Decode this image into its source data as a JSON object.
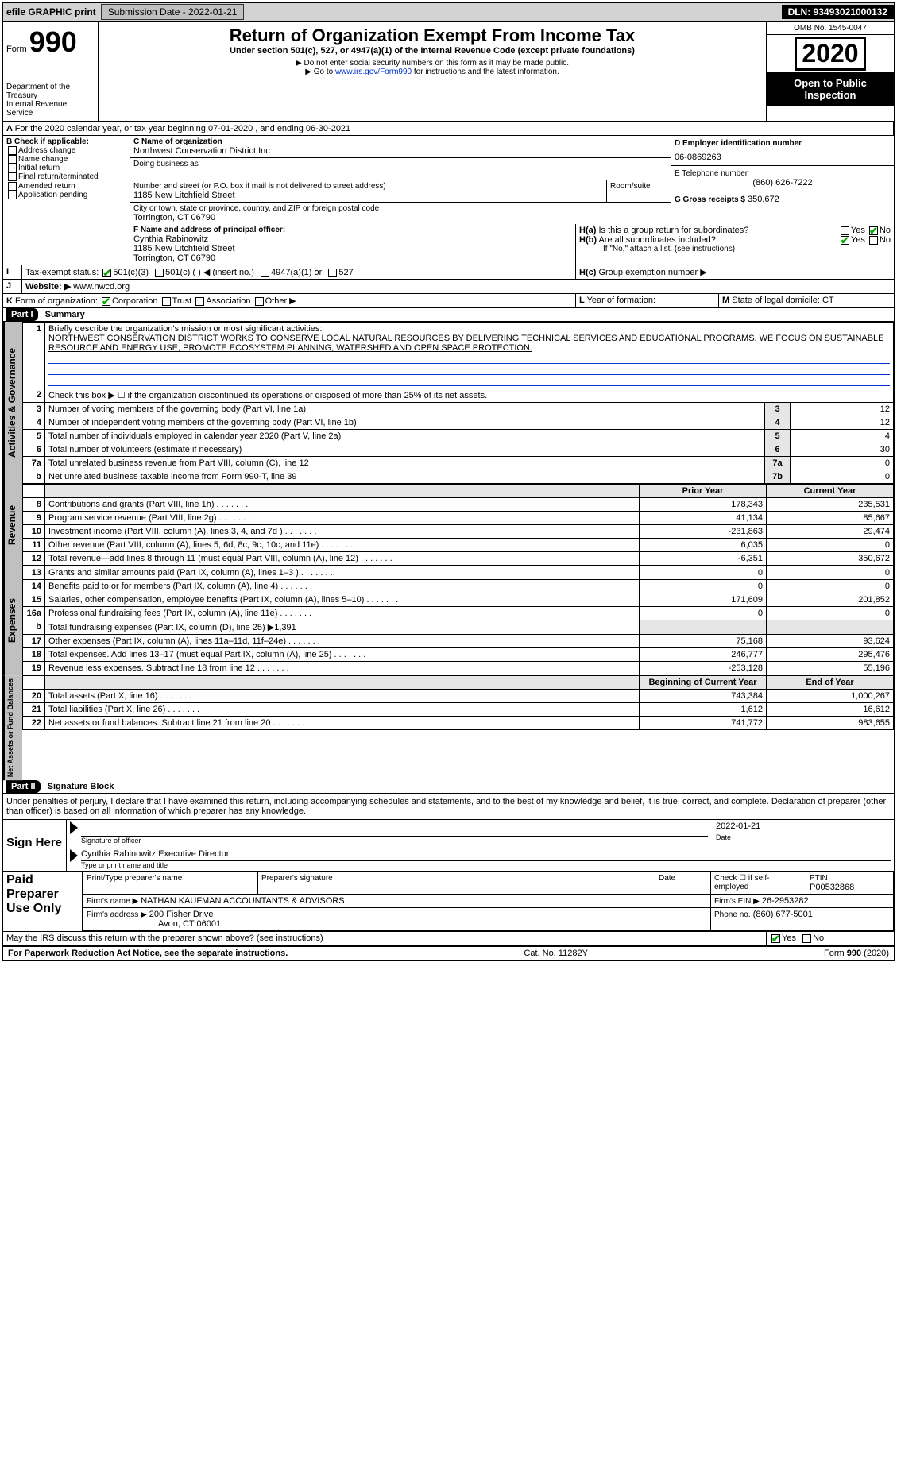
{
  "toolbar": {
    "efile": "efile GRAPHIC print",
    "submission_label": "Submission Date - 2022-01-21",
    "dln_label": "DLN: 93493021000132"
  },
  "header": {
    "form_word": "Form",
    "form_no": "990",
    "dept1": "Department of the Treasury",
    "dept2": "Internal Revenue Service",
    "title": "Return of Organization Exempt From Income Tax",
    "subtitle": "Under section 501(c), 527, or 4947(a)(1) of the Internal Revenue Code (except private foundations)",
    "note1": "▶ Do not enter social security numbers on this form as it may be made public.",
    "note2_pre": "▶ Go to ",
    "note2_link": "www.irs.gov/Form990",
    "note2_post": " for instructions and the latest information.",
    "omb": "OMB No. 1545-0047",
    "year": "2020",
    "open": "Open to Public Inspection"
  },
  "periodA": "For the 2020 calendar year, or tax year beginning 07-01-2020   , and ending 06-30-2021",
  "B": {
    "label": "B Check if applicable:",
    "opts": [
      "Address change",
      "Name change",
      "Initial return",
      "Final return/terminated",
      "Amended return",
      "Application pending"
    ]
  },
  "C": {
    "name_label": "C Name of organization",
    "name": "Northwest Conservation District Inc",
    "dba_label": "Doing business as",
    "addr_label": "Number and street (or P.O. box if mail is not delivered to street address)",
    "room_label": "Room/suite",
    "addr": "1185 New Litchfield Street",
    "city_label": "City or town, state or province, country, and ZIP or foreign postal code",
    "city": "Torrington, CT  06790"
  },
  "D": {
    "label": "D Employer identification number",
    "val": "06-0869263"
  },
  "E": {
    "label": "E Telephone number",
    "val": "(860) 626-7222"
  },
  "G": {
    "label": "G Gross receipts $",
    "val": "350,672"
  },
  "F": {
    "label": "F Name and address of principal officer:",
    "name": "Cynthia Rabinowitz",
    "addr1": "1185 New Litchfield Street",
    "addr2": "Torrington, CT  06790"
  },
  "H": {
    "a": "Is this a group return for subordinates?",
    "b": "Are all subordinates included?",
    "bnote": "If \"No,\" attach a list. (see instructions)",
    "c": "Group exemption number ▶",
    "yes": "Yes",
    "no": "No"
  },
  "I": {
    "label": "Tax-exempt status:",
    "o1": "501(c)(3)",
    "o2": "501(c) (  ) ◀ (insert no.)",
    "o3": "4947(a)(1) or",
    "o4": "527"
  },
  "J": {
    "label": "Website: ▶",
    "val": "www.nwcd.org"
  },
  "K": {
    "label": "Form of organization:",
    "o1": "Corporation",
    "o2": "Trust",
    "o3": "Association",
    "o4": "Other ▶"
  },
  "L": {
    "label": "Year of formation:"
  },
  "M": {
    "label": "State of legal domicile: CT"
  },
  "part1": {
    "label": "Part I",
    "title": "Summary",
    "line1_label": "Briefly describe the organization's mission or most significant activities:",
    "mission": "NORTHWEST CONSERVATION DISTRICT WORKS TO CONSERVE LOCAL NATURAL RESOURCES BY DELIVERING TECHNICAL SERVICES AND EDUCATIONAL PROGRAMS. WE FOCUS ON SUSTAINABLE RESOURCE AND ENERGY USE, PROMOTE ECOSYSTEM PLANNING, WATERSHED AND OPEN SPACE PROTECTION.",
    "line2": "Check this box ▶ ☐ if the organization discontinued its operations or disposed of more than 25% of its net assets.",
    "lines": {
      "3": {
        "t": "Number of voting members of the governing body (Part VI, line 1a)",
        "v": "12"
      },
      "4": {
        "t": "Number of independent voting members of the governing body (Part VI, line 1b)",
        "v": "12"
      },
      "5": {
        "t": "Total number of individuals employed in calendar year 2020 (Part V, line 2a)",
        "v": "4"
      },
      "6": {
        "t": "Total number of volunteers (estimate if necessary)",
        "v": "30"
      },
      "7a": {
        "t": "Total unrelated business revenue from Part VIII, column (C), line 12",
        "v": "0"
      },
      "7b": {
        "t": "Net unrelated business taxable income from Form 990-T, line 39",
        "v": "0"
      }
    },
    "prior": "Prior Year",
    "current": "Current Year",
    "revenue": [
      {
        "n": "8",
        "t": "Contributions and grants (Part VIII, line 1h)",
        "p": "178,343",
        "c": "235,531"
      },
      {
        "n": "9",
        "t": "Program service revenue (Part VIII, line 2g)",
        "p": "41,134",
        "c": "85,667"
      },
      {
        "n": "10",
        "t": "Investment income (Part VIII, column (A), lines 3, 4, and 7d )",
        "p": "-231,863",
        "c": "29,474"
      },
      {
        "n": "11",
        "t": "Other revenue (Part VIII, column (A), lines 5, 6d, 8c, 9c, 10c, and 11e)",
        "p": "6,035",
        "c": "0"
      },
      {
        "n": "12",
        "t": "Total revenue—add lines 8 through 11 (must equal Part VIII, column (A), line 12)",
        "p": "-6,351",
        "c": "350,672"
      }
    ],
    "expenses": [
      {
        "n": "13",
        "t": "Grants and similar amounts paid (Part IX, column (A), lines 1–3 )",
        "p": "0",
        "c": "0"
      },
      {
        "n": "14",
        "t": "Benefits paid to or for members (Part IX, column (A), line 4)",
        "p": "0",
        "c": "0"
      },
      {
        "n": "15",
        "t": "Salaries, other compensation, employee benefits (Part IX, column (A), lines 5–10)",
        "p": "171,609",
        "c": "201,852"
      },
      {
        "n": "16a",
        "t": "Professional fundraising fees (Part IX, column (A), line 11e)",
        "p": "0",
        "c": "0"
      },
      {
        "n": "b",
        "t": "Total fundraising expenses (Part IX, column (D), line 25) ▶1,391",
        "p": "",
        "c": ""
      },
      {
        "n": "17",
        "t": "Other expenses (Part IX, column (A), lines 11a–11d, 11f–24e)",
        "p": "75,168",
        "c": "93,624"
      },
      {
        "n": "18",
        "t": "Total expenses. Add lines 13–17 (must equal Part IX, column (A), line 25)",
        "p": "246,777",
        "c": "295,476"
      },
      {
        "n": "19",
        "t": "Revenue less expenses. Subtract line 18 from line 12",
        "p": "-253,128",
        "c": "55,196"
      }
    ],
    "net_hdr_p": "Beginning of Current Year",
    "net_hdr_c": "End of Year",
    "net": [
      {
        "n": "20",
        "t": "Total assets (Part X, line 16)",
        "p": "743,384",
        "c": "1,000,267"
      },
      {
        "n": "21",
        "t": "Total liabilities (Part X, line 26)",
        "p": "1,612",
        "c": "16,612"
      },
      {
        "n": "22",
        "t": "Net assets or fund balances. Subtract line 21 from line 20",
        "p": "741,772",
        "c": "983,655"
      }
    ]
  },
  "part2": {
    "label": "Part II",
    "title": "Signature Block",
    "decl": "Under penalties of perjury, I declare that I have examined this return, including accompanying schedules and statements, and to the best of my knowledge and belief, it is true, correct, and complete. Declaration of preparer (other than officer) is based on all information of which preparer has any knowledge.",
    "sign_here": "Sign Here",
    "sig_officer": "Signature of officer",
    "date_lbl": "Date",
    "sig_date": "2022-01-21",
    "officer_name": "Cynthia Rabinowitz  Executive Director",
    "type_name": "Type or print name and title",
    "paid": "Paid Preparer Use Only",
    "prep_name_lbl": "Print/Type preparer's name",
    "prep_sig_lbl": "Preparer's signature",
    "date2": "Date",
    "check_self": "Check ☐ if self-employed",
    "ptin_lbl": "PTIN",
    "ptin": "P00532868",
    "firm_name_lbl": "Firm's name   ▶",
    "firm_name": "NATHAN KAUFMAN ACCOUNTANTS & ADVISORS",
    "firm_ein_lbl": "Firm's EIN ▶",
    "firm_ein": "26-2953282",
    "firm_addr_lbl": "Firm's address ▶",
    "firm_addr1": "200 Fisher Drive",
    "firm_addr2": "Avon, CT  06001",
    "phone_lbl": "Phone no.",
    "phone": "(860) 677-5001",
    "discuss": "May the IRS discuss this return with the preparer shown above? (see instructions)"
  },
  "footer": {
    "pra": "For Paperwork Reduction Act Notice, see the separate instructions.",
    "cat": "Cat. No. 11282Y",
    "form": "Form 990 (2020)"
  },
  "vtabs": {
    "gov": "Activities & Governance",
    "rev": "Revenue",
    "exp": "Expenses",
    "net": "Net Assets or Fund Balances"
  }
}
